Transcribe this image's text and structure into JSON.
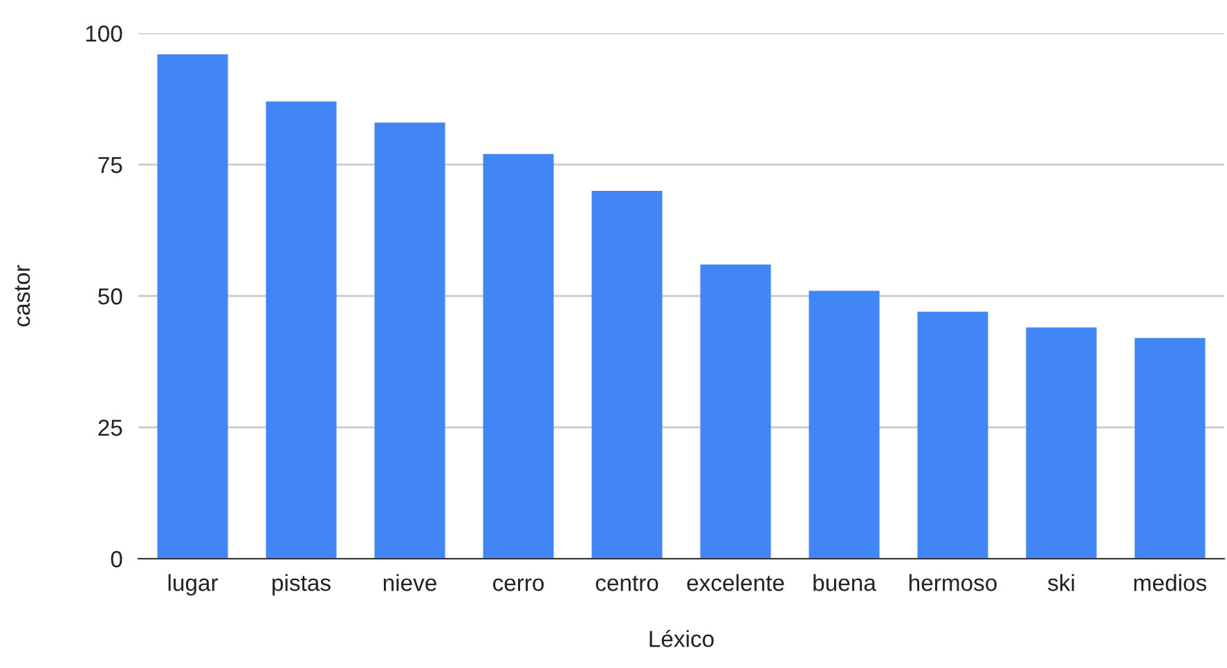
{
  "chart_data": {
    "type": "bar",
    "xlabel": "Léxico",
    "ylabel": "castor",
    "categories": [
      "lugar",
      "pistas",
      "nieve",
      "cerro",
      "centro",
      "excelente",
      "buena",
      "hermoso",
      "ski",
      "medios"
    ],
    "values": [
      96,
      87,
      83,
      77,
      70,
      56,
      51,
      47,
      44,
      42
    ],
    "color": "#4285f4",
    "ylim": [
      0,
      100
    ],
    "yticks": [
      0,
      25,
      50,
      75,
      100
    ],
    "grid": "y"
  }
}
